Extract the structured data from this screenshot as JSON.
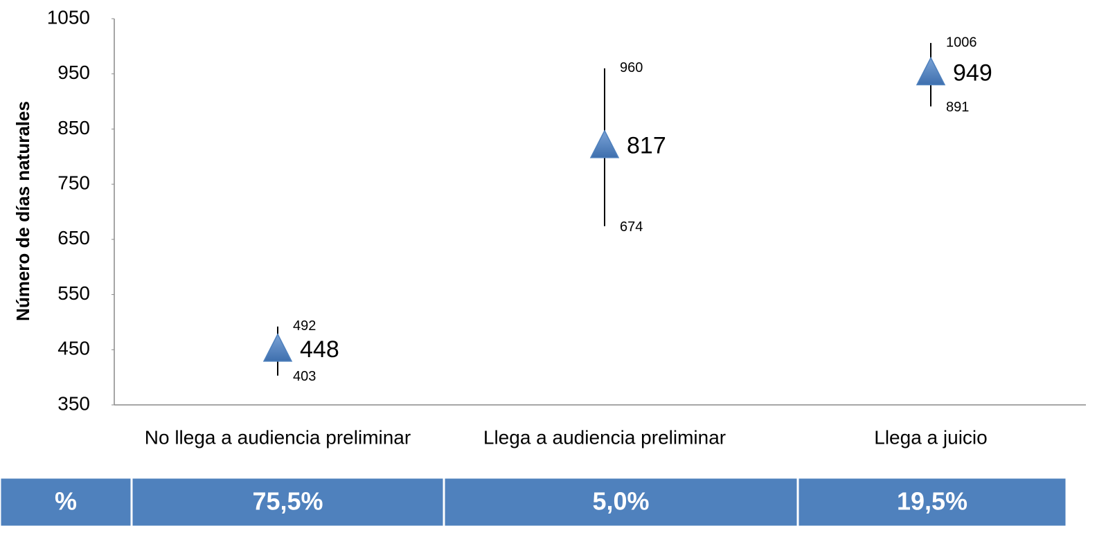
{
  "chart_data": {
    "type": "errorbar",
    "ylabel": "Número de días naturales",
    "categories": [
      "No llega a audiencia preliminar",
      "Llega a audiencia preliminar",
      "Llega a juicio"
    ],
    "series": [
      {
        "color": "#4f81bd",
        "values": [
          448,
          817,
          949
        ],
        "high": [
          492,
          960,
          1006
        ],
        "low": [
          403,
          674,
          891
        ]
      }
    ],
    "ylim": [
      350,
      1050
    ],
    "yticks": [
      350,
      450,
      550,
      650,
      750,
      850,
      950,
      1050
    ],
    "grid": false
  },
  "table": {
    "rows": [
      [
        "%",
        "75,5%",
        "5,0%",
        "19,5%"
      ]
    ],
    "color": "#4f81bd"
  }
}
